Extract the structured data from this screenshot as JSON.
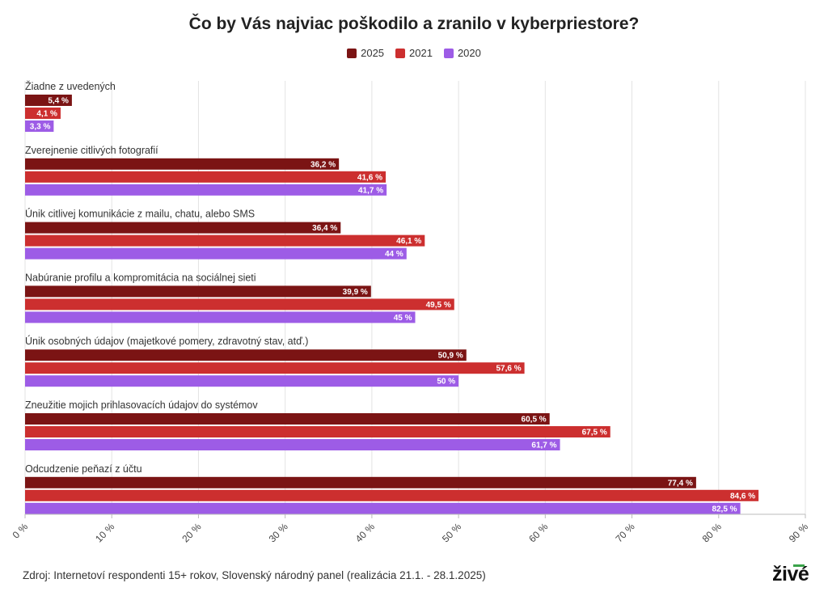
{
  "chart_data": {
    "type": "bar",
    "orientation": "horizontal",
    "title": "Čo by Vás najviac poškodilo a zranilo v kyberpriestore?",
    "categories": [
      "Žiadne z uvedených",
      "Zverejnenie citlivých fotografií",
      "Únik citlivej komunikácie z mailu, chatu, alebo SMS",
      "Nabúranie profilu a kompromitácia na sociálnej sieti",
      "Únik osobných údajov (majetkové pomery, zdravotný stav, atď.)",
      "Zneužitie mojich prihlasovacích údajov do systémov",
      "Odcudzenie peňazí z účtu"
    ],
    "series": [
      {
        "name": "2025",
        "color": "#7b1414",
        "values": [
          5.4,
          36.2,
          36.4,
          39.9,
          50.9,
          60.5,
          77.4
        ],
        "labels": [
          "5,4 %",
          "36,2 %",
          "36,4 %",
          "39,9 %",
          "50,9 %",
          "60,5 %",
          "77,4 %"
        ]
      },
      {
        "name": "2021",
        "color": "#cc2f2f",
        "values": [
          4.1,
          41.6,
          46.1,
          49.5,
          57.6,
          67.5,
          84.6
        ],
        "labels": [
          "4,1 %",
          "41,6 %",
          "46,1 %",
          "49,5 %",
          "57,6 %",
          "67,5 %",
          "84,6 %"
        ]
      },
      {
        "name": "2020",
        "color": "#9d5ce6",
        "values": [
          3.3,
          41.7,
          44,
          45,
          50,
          61.7,
          82.5
        ],
        "labels": [
          "3,3 %",
          "41,7 %",
          "44 %",
          "45 %",
          "50 %",
          "61,7 %",
          "82,5 %"
        ]
      }
    ],
    "xlim": [
      0,
      90
    ],
    "xticks": [
      0,
      10,
      20,
      30,
      40,
      50,
      60,
      70,
      80,
      90
    ],
    "xtick_labels": [
      "0 %",
      "10 %",
      "20 %",
      "30 %",
      "40 %",
      "50 %",
      "60 %",
      "70 %",
      "80 %",
      "90 %"
    ],
    "grid": true,
    "legend_position": "top-center"
  },
  "source": "Zdroj: Internetoví respondenti 15+ rokov, Slovenský národný panel (realizácia 21.1. - 28.1.2025)",
  "logo_text": "živé"
}
